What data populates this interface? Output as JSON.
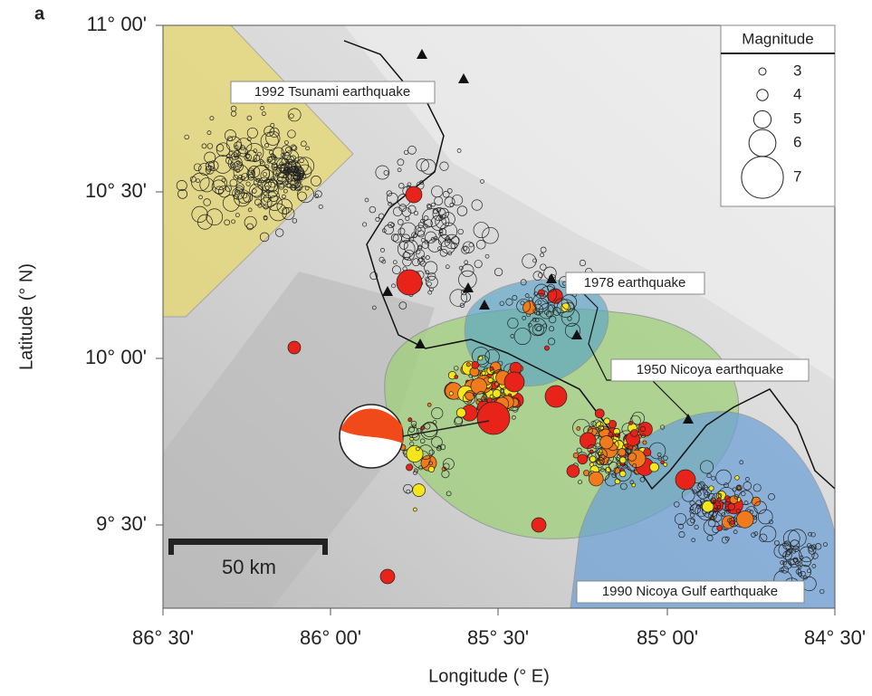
{
  "panel_label": "a",
  "x_axis": {
    "label": "Longitude (° E)",
    "ticks": [
      "86° 30'",
      "86° 00'",
      "85° 30'",
      "85° 00'",
      "84° 30'"
    ]
  },
  "y_axis": {
    "label": "Latitude (° N)",
    "ticks": [
      "11° 00'",
      "10° 30'",
      "10° 00'",
      "9° 30'"
    ]
  },
  "legend": {
    "title": "Magnitude",
    "items": [
      3,
      4,
      5,
      6,
      7
    ]
  },
  "annotations": [
    "1992 Tsunami earthquake",
    "1978 earthquake",
    "1950 Nicoya earthquake",
    "1990 Nicoya Gulf earthquake"
  ],
  "scale_bar": {
    "label": "50 km"
  }
}
